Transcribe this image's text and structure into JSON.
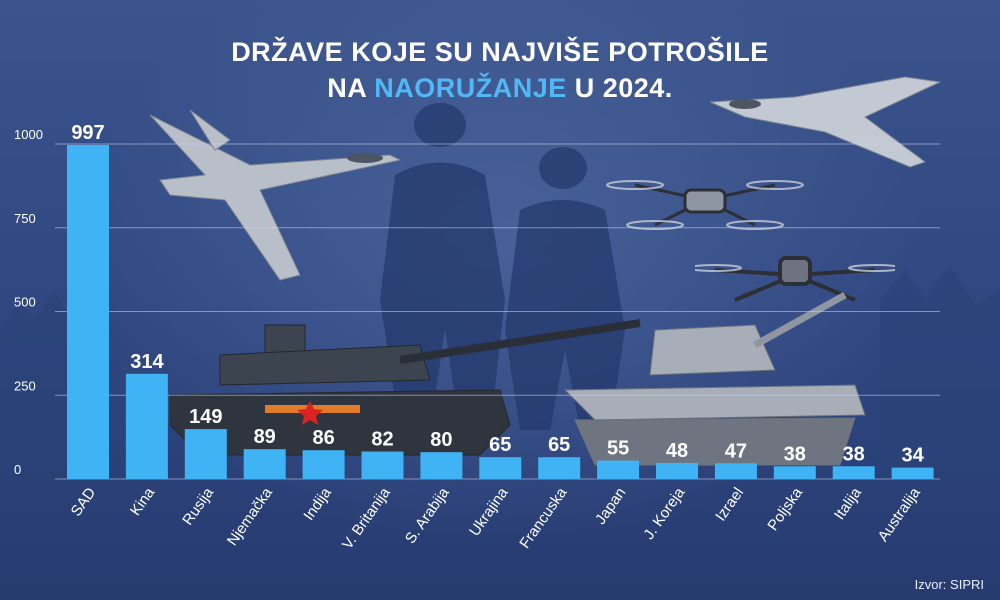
{
  "title": {
    "line1": "DRŽAVE KOJE SU NAJVIŠE POTROŠILE",
    "line2_pre": "NA ",
    "line2_highlight": "NAORUŽANJE",
    "line2_post": " U 2024."
  },
  "source": "Izvor: SIPRI",
  "colors": {
    "bar": "#3fb3f3",
    "highlight": "#4fb8f5",
    "text": "#ffffff",
    "grid": "#c9d4ee"
  },
  "chart_data": {
    "type": "bar",
    "categories": [
      "SAD",
      "Kina",
      "Rusija",
      "Njemačka",
      "Indija",
      "V. Britanija",
      "S. Arabija",
      "Ukrajina",
      "Francuska",
      "Japan",
      "J. Koreja",
      "Izrael",
      "Poljska",
      "Italija",
      "Australija"
    ],
    "values": [
      997,
      314,
      149,
      89,
      86,
      82,
      80,
      65,
      65,
      55,
      48,
      47,
      38,
      38,
      34
    ],
    "ylim": [
      0,
      1000
    ],
    "yticks": [
      0,
      250,
      500,
      750,
      1000
    ],
    "grid": true,
    "title": "DRŽAVE KOJE SU NAJVIŠE POTROŠILE NA NAORUŽANJE U 2024.",
    "xlabel": "",
    "ylabel": ""
  }
}
